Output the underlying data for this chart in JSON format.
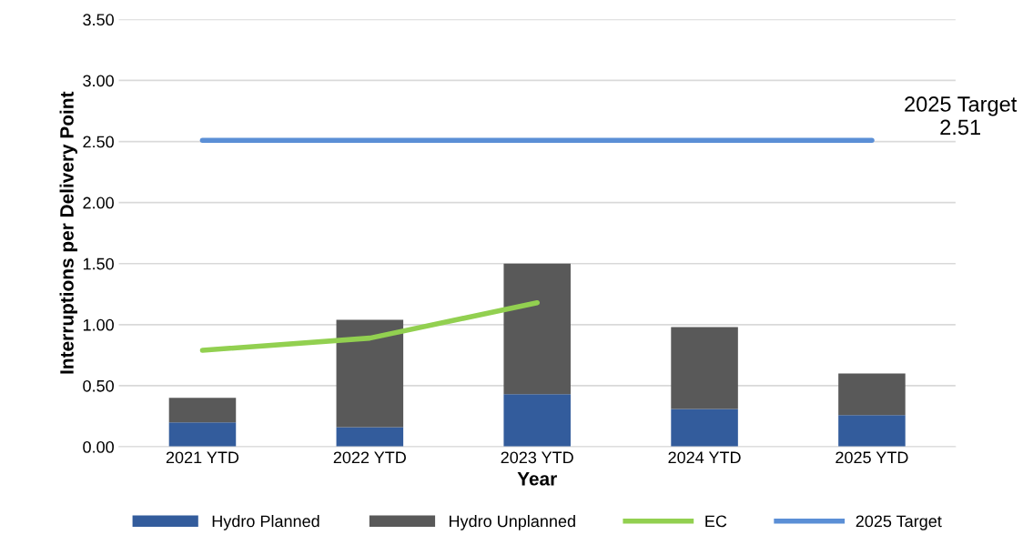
{
  "chart_data": {
    "type": "bar",
    "stacked": true,
    "xlabel": "Year",
    "ylabel": "Interruptions per Delivery Point",
    "categories": [
      "2021 YTD",
      "2022 YTD",
      "2023 YTD",
      "2024 YTD",
      "2025 YTD"
    ],
    "series": [
      {
        "name": "Hydro Planned",
        "color": "#335c9c",
        "values": [
          0.2,
          0.16,
          0.43,
          0.31,
          0.26
        ]
      },
      {
        "name": "Hydro Unplanned",
        "color": "#595959",
        "values": [
          0.2,
          0.88,
          1.07,
          0.67,
          0.34
        ]
      },
      {
        "name": "EC",
        "type": "line",
        "color": "#92d050",
        "values": [
          0.79,
          0.89,
          1.18,
          null,
          null
        ]
      },
      {
        "name": "2025 Target",
        "type": "line",
        "color": "#5b8fd6",
        "values": [
          2.51,
          2.51,
          2.51,
          2.51,
          2.51
        ]
      }
    ],
    "ylim": [
      0,
      3.5
    ],
    "yticks": [
      {
        "value": 0,
        "label": "0.00"
      },
      {
        "value": 0.5,
        "label": "0.50"
      },
      {
        "value": 1,
        "label": "1.00"
      },
      {
        "value": 1.5,
        "label": "1.50"
      },
      {
        "value": 2,
        "label": "2.00"
      },
      {
        "value": 2.5,
        "label": "2.50"
      },
      {
        "value": 3,
        "label": "3.00"
      },
      {
        "value": 3.5,
        "label": "3.50"
      }
    ],
    "grid": "y",
    "legend": "bottom",
    "annotations": [
      {
        "text": "2025 Target\n2.51",
        "x": "2025 YTD",
        "y": 2.51
      }
    ]
  }
}
